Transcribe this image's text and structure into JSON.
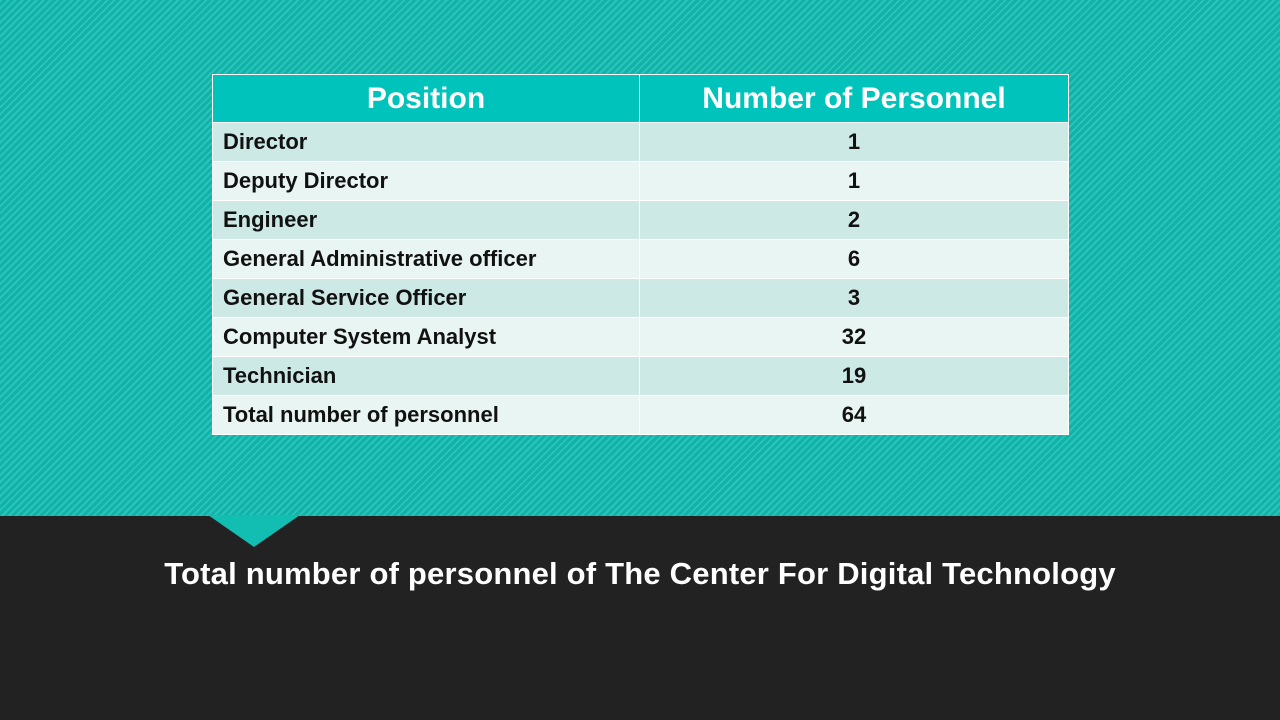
{
  "table": {
    "headers": {
      "position": "Position",
      "count": "Number of Personnel"
    },
    "rows": [
      {
        "position": "Director",
        "count": "1"
      },
      {
        "position": "Deputy Director",
        "count": "1"
      },
      {
        "position": "Engineer",
        "count": "2"
      },
      {
        "position": "General Administrative officer",
        "count": "6"
      },
      {
        "position": "General Service Officer",
        "count": "3"
      },
      {
        "position": "Computer System Analyst",
        "count": "32"
      },
      {
        "position": "Technician",
        "count": "19"
      },
      {
        "position": "Total number of personnel",
        "count": "64"
      }
    ]
  },
  "caption": "Total number of personnel of  The Center For Digital Technology",
  "colors": {
    "accent": "#12bdb2",
    "header": "#00c4bb",
    "row_odd": "#cde9e6",
    "row_even": "#e8f5f3",
    "footer_bg": "#222222"
  }
}
